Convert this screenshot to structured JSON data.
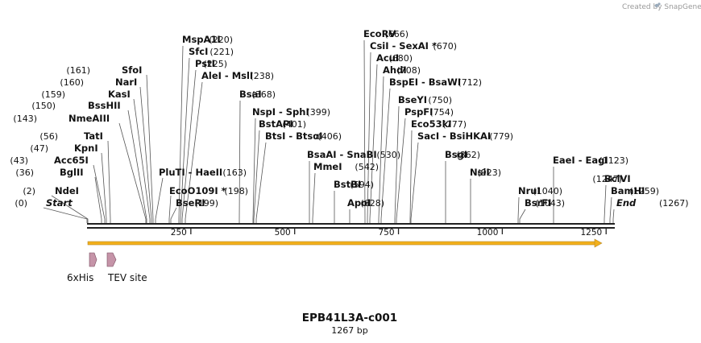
{
  "credit": "Created by SnapGene",
  "map": {
    "title": "EPB41L3A-c001",
    "length_label": "1267 bp",
    "length": 1267
  },
  "ticks": [
    "250",
    "500",
    "750",
    "1000",
    "1250"
  ],
  "features": [
    {
      "name": "6xHis",
      "color": "#c594a8"
    },
    {
      "name": "TEV site",
      "color": "#c594a8"
    }
  ],
  "sites": [
    {
      "name": "Start",
      "pos": "(0)"
    },
    {
      "name": "NdeI",
      "pos": "(2)"
    },
    {
      "name": "BglII",
      "pos": "(36)"
    },
    {
      "name": "Acc65I",
      "pos": "(43)"
    },
    {
      "name": "KpnI",
      "pos": "(47)"
    },
    {
      "name": "TatI",
      "pos": "(56)"
    },
    {
      "name": "NmeAIII",
      "pos": "(143)"
    },
    {
      "name": "BssHII",
      "pos": "(150)"
    },
    {
      "name": "KasI",
      "pos": "(159)"
    },
    {
      "name": "NarI",
      "pos": "(160)"
    },
    {
      "name": "SfoI",
      "pos": "(161)"
    },
    {
      "name": "MspA1I",
      "pos": "(220)"
    },
    {
      "name": "SfcI",
      "pos": "(221)"
    },
    {
      "name": "PstI",
      "pos": "(225)"
    },
    {
      "name": "AleI  - MslI",
      "pos": "(238)"
    },
    {
      "name": "PluTI  - HaeII",
      "pos": "(163)"
    },
    {
      "name": "EcoO109I *",
      "pos": "(198)"
    },
    {
      "name": "BseRI",
      "pos": "(199)"
    },
    {
      "name": "BsaI",
      "pos": "(368)"
    },
    {
      "name": "NspI  - SphI",
      "pos": "(399)"
    },
    {
      "name": "BstAPI",
      "pos": "(401)"
    },
    {
      "name": "BtsI  - BtsαI",
      "pos": "(406)"
    },
    {
      "name": "BsaAI  - SnaBI",
      "pos": "(530)"
    },
    {
      "name": "MmeI",
      "pos": "(542)"
    },
    {
      "name": "BstBI",
      "pos": "(594)"
    },
    {
      "name": "ApoI",
      "pos": "(628)"
    },
    {
      "name": "EcoRV",
      "pos": "(666)"
    },
    {
      "name": "CsiI  - SexAI *",
      "pos": "(670)"
    },
    {
      "name": "AcuI",
      "pos": "(680)"
    },
    {
      "name": "AhdI",
      "pos": "(708)"
    },
    {
      "name": "BspEI  - BsaWI",
      "pos": "(712)"
    },
    {
      "name": "BseYI",
      "pos": "(750)"
    },
    {
      "name": "PspFI",
      "pos": "(754)"
    },
    {
      "name": "Eco53kI",
      "pos": "(777)"
    },
    {
      "name": "SacI  - BsiHKAI",
      "pos": "(779)"
    },
    {
      "name": "BsgI",
      "pos": "(862)"
    },
    {
      "name": "NsiI",
      "pos": "(923)"
    },
    {
      "name": "NruI",
      "pos": "(1040)"
    },
    {
      "name": "BsrFI",
      "pos": "(1043)"
    },
    {
      "name": "EaeI  - EagI",
      "pos": "(1123)"
    },
    {
      "name": "BclVI",
      "pos": "(1247)"
    },
    {
      "name": "BamHI",
      "pos": "(1259)"
    },
    {
      "name": "End",
      "pos": "(1267)"
    }
  ]
}
